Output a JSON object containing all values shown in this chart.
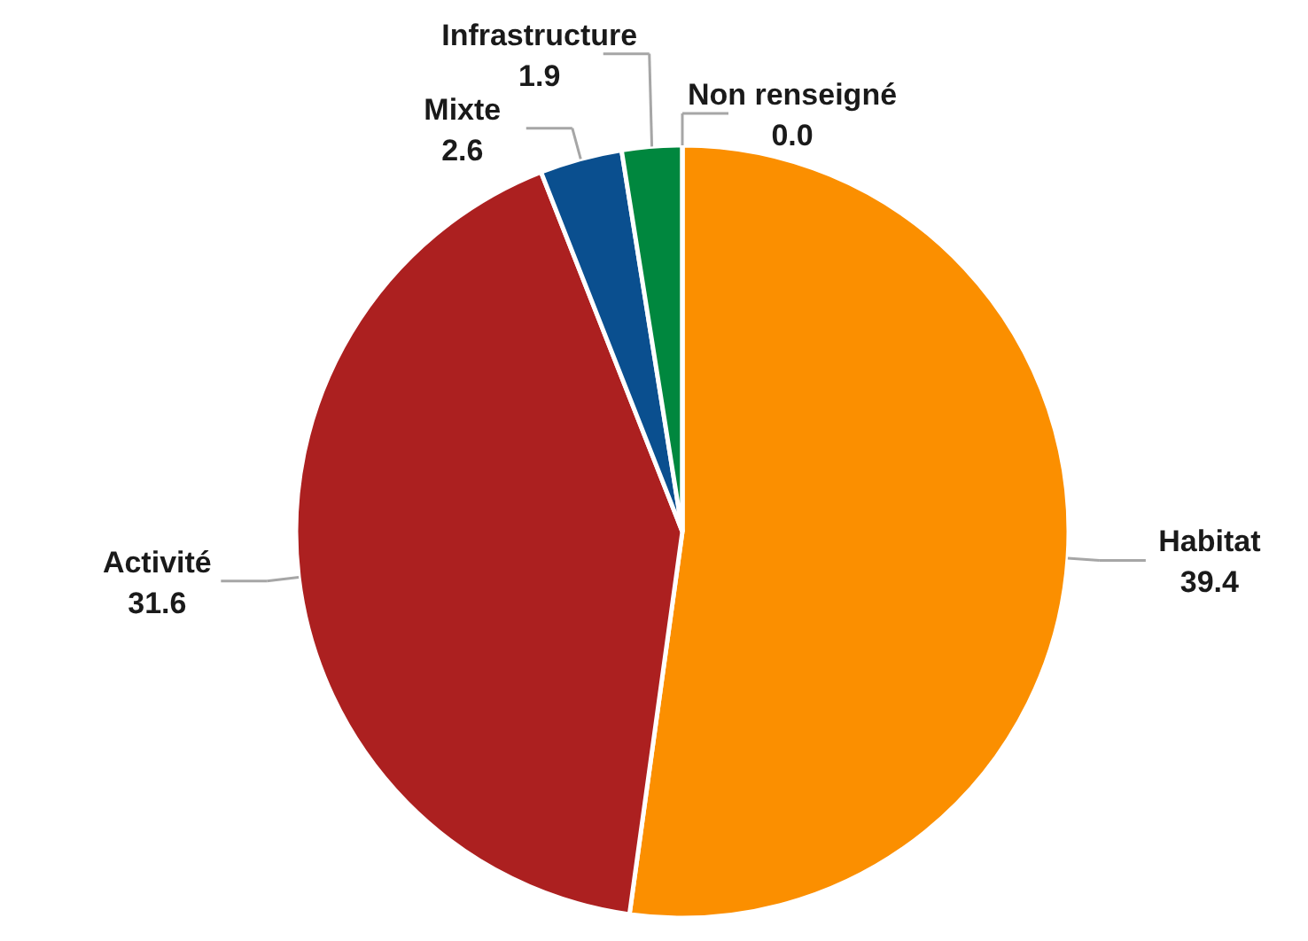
{
  "chart_data": {
    "type": "pie",
    "categories": [
      "Habitat",
      "Activité",
      "Mixte",
      "Infrastructure",
      "Non renseigné"
    ],
    "values": [
      39.4,
      31.6,
      2.6,
      1.9,
      0.0
    ],
    "colors": [
      "#fb8f00",
      "#ac2020",
      "#0a4f8f",
      "#00873e",
      "#7f7f7f"
    ],
    "value_labels": [
      "39.4",
      "31.6",
      "2.6",
      "1.9",
      "0.0"
    ]
  }
}
